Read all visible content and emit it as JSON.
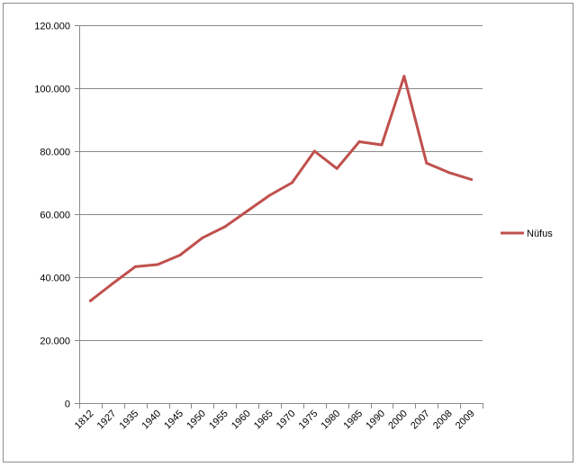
{
  "chart_data": {
    "type": "line",
    "title": "",
    "xlabel": "",
    "ylabel": "",
    "categories": [
      "1812",
      "1927",
      "1935",
      "1940",
      "1945",
      "1950",
      "1955",
      "1960",
      "1965",
      "1970",
      "1975",
      "1980",
      "1985",
      "1990",
      "2000",
      "2007",
      "2008",
      "2009"
    ],
    "series": [
      {
        "name": "Nüfus",
        "color": "#c0504d",
        "values": [
          32500,
          38000,
          43300,
          44000,
          47000,
          52500,
          56000,
          61000,
          66000,
          70000,
          80000,
          74500,
          83000,
          82000,
          103800,
          76200,
          73200,
          71000
        ]
      }
    ],
    "ylim": [
      0,
      120000
    ],
    "yticks": [
      0,
      20000,
      40000,
      60000,
      80000,
      100000,
      120000
    ],
    "ytick_labels": [
      "0",
      "20.000",
      "40.000",
      "60.000",
      "80.000",
      "100.000",
      "120.000"
    ],
    "grid": true,
    "legend_position": "right"
  }
}
